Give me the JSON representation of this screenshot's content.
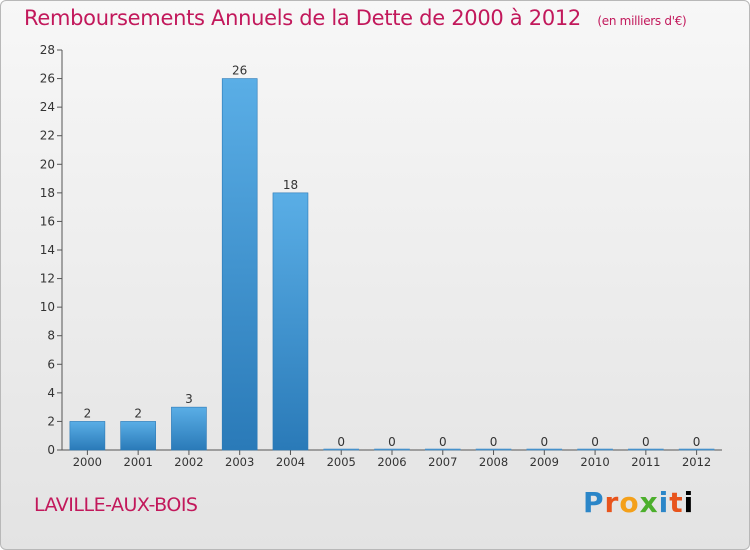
{
  "header": {
    "title": "Remboursements Annuels de la Dette de 2000 à 2012",
    "subtitle": "(en milliers d'€)"
  },
  "footer": {
    "city": "LAVILLE-AUX-BOIS",
    "logo": [
      "P",
      "r",
      "o",
      "x",
      "i",
      "t",
      "i"
    ]
  },
  "colors": {
    "title": "#c2185b",
    "bar_top": "#5aaee6",
    "bar_bottom": "#2a7ab8"
  },
  "chart_data": {
    "type": "bar",
    "title": "Remboursements Annuels de la Dette de 2000 à 2012",
    "xlabel": "",
    "ylabel": "",
    "categories": [
      "2000",
      "2001",
      "2002",
      "2003",
      "2004",
      "2005",
      "2006",
      "2007",
      "2008",
      "2009",
      "2010",
      "2011",
      "2012"
    ],
    "values": [
      2,
      2,
      3,
      26,
      18,
      0,
      0,
      0,
      0,
      0,
      0,
      0,
      0
    ],
    "ylim": [
      0,
      28
    ],
    "yticks": [
      0,
      2,
      4,
      6,
      8,
      10,
      12,
      14,
      16,
      18,
      20,
      22,
      24,
      26,
      28
    ],
    "grid": false,
    "legend": "none"
  }
}
